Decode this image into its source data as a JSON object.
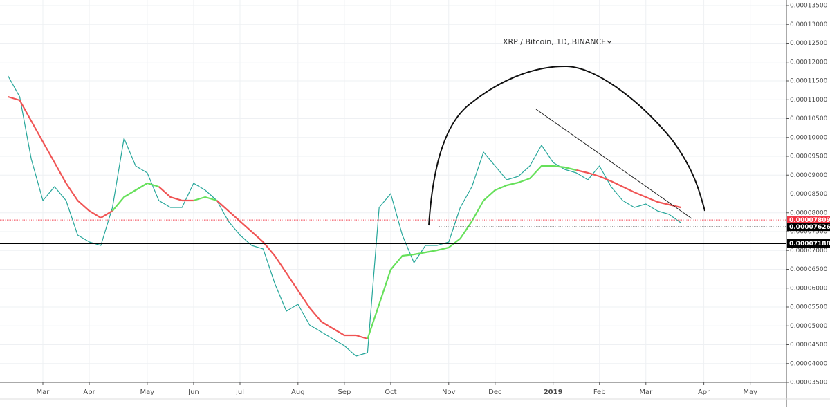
{
  "chart_data": {
    "type": "line",
    "title": "XRP / Bitcoin, 1D, BINANCE",
    "categories": [
      null,
      null,
      null,
      "Mar",
      null,
      null,
      null,
      "Apr",
      null,
      null,
      null,
      null,
      "May",
      null,
      null,
      null,
      "Jun",
      null,
      null,
      null,
      "Jul",
      null,
      null,
      null,
      null,
      "Aug",
      null,
      null,
      null,
      "Sep",
      null,
      null,
      null,
      "Oct",
      null,
      null,
      null,
      null,
      "Nov",
      null,
      null,
      null,
      "Dec",
      null,
      null,
      null,
      null,
      "2019",
      null,
      null,
      null,
      "Feb",
      null,
      null,
      null,
      "Mar",
      null,
      null,
      null,
      null,
      "Apr",
      null,
      null,
      null,
      "May",
      null,
      null
    ],
    "series": [
      {
        "color": "#26a69a",
        "values": [
          0.00011628,
          0.00011078,
          9.427e-05,
          8.326e-05,
          8.693e-05,
          8.326e-05,
          7.408e-05,
          7.225e-05,
          7.133e-05,
          8.142e-05,
          9.977e-05,
          9.243e-05,
          9.06e-05,
          8.326e-05,
          8.142e-05,
          8.142e-05,
          8.784e-05,
          8.601e-05,
          8.326e-05,
          7.775e-05,
          7.408e-05,
          7.133e-05,
          7.041e-05,
          6.124e-05,
          5.39e-05,
          5.573e-05,
          5.023e-05,
          4.839e-05,
          4.656e-05,
          4.472e-05,
          4.197e-05,
          4.289e-05,
          8.142e-05,
          8.509e-05,
          7.408e-05,
          6.674e-05,
          7.133e-05,
          7.133e-05,
          7.225e-05,
          8.142e-05,
          8.693e-05,
          9.61e-05,
          9.243e-05,
          8.876e-05,
          8.968e-05,
          9.243e-05,
          9.794e-05,
          9.335e-05,
          9.151e-05,
          9.06e-05,
          8.876e-05,
          9.243e-05,
          8.693e-05,
          8.326e-05,
          8.142e-05,
          8.234e-05,
          8.05e-05,
          7.959e-05,
          7.738e-05,
          null,
          null,
          null,
          null,
          null,
          null,
          null,
          null
        ]
      },
      {
        "color": "#f05454",
        "values": [
          0.00011078,
          0.00010986,
          0.00010436,
          9.885e-05,
          9.335e-05,
          8.784e-05,
          8.326e-05,
          8.05e-05,
          7.867e-05,
          8.05e-05,
          null,
          null,
          null,
          8.693e-05,
          8.417e-05,
          8.326e-05,
          8.326e-05,
          null,
          8.326e-05,
          8.05e-05,
          7.775e-05,
          7.5e-05,
          7.225e-05,
          6.858e-05,
          6.399e-05,
          5.94e-05,
          5.482e-05,
          5.114e-05,
          4.931e-05,
          4.748e-05,
          4.748e-05,
          4.656e-05,
          null,
          null,
          null,
          null,
          null,
          null,
          null,
          null,
          null,
          null,
          null,
          null,
          null,
          null,
          null,
          null,
          null,
          9.133e-05,
          9.06e-05,
          8.968e-05,
          8.839e-05,
          8.693e-05,
          8.546e-05,
          8.417e-05,
          8.289e-05,
          8.216e-05,
          8.142e-05,
          null,
          null,
          null,
          null,
          null,
          null,
          null,
          null
        ]
      },
      {
        "color": "#66e05a",
        "values": [
          null,
          null,
          null,
          null,
          null,
          null,
          null,
          null,
          null,
          8.05e-05,
          8.417e-05,
          8.601e-05,
          8.784e-05,
          8.693e-05,
          null,
          null,
          8.326e-05,
          8.417e-05,
          8.326e-05,
          null,
          null,
          null,
          null,
          null,
          null,
          null,
          null,
          null,
          null,
          null,
          null,
          4.656e-05,
          5.573e-05,
          6.491e-05,
          6.858e-05,
          6.894e-05,
          6.949e-05,
          7.005e-05,
          7.078e-05,
          7.316e-05,
          7.775e-05,
          8.326e-05,
          8.601e-05,
          8.729e-05,
          8.803e-05,
          8.913e-05,
          9.243e-05,
          9.243e-05,
          9.206e-05,
          9.133e-05,
          null,
          null,
          null,
          null,
          null,
          null,
          null,
          null,
          null,
          null,
          null,
          null,
          null,
          null,
          null,
          null,
          null
        ]
      }
    ],
    "ylim": [
      3.5e-05,
      0.000136
    ],
    "yticks": [
      {
        "value": 3.5e-05,
        "label": "0.00003500"
      },
      {
        "value": 4e-05,
        "label": "0.00004000"
      },
      {
        "value": 4.5e-05,
        "label": "0.00004500"
      },
      {
        "value": 5e-05,
        "label": "0.00005000"
      },
      {
        "value": 5.5e-05,
        "label": "0.00005500"
      },
      {
        "value": 6e-05,
        "label": "0.00006000"
      },
      {
        "value": 6.5e-05,
        "label": "0.00006500"
      },
      {
        "value": 7e-05,
        "label": "0.00007000"
      },
      {
        "value": 7.5e-05,
        "label": "0.00007500"
      },
      {
        "value": 8e-05,
        "label": "0.00008000"
      },
      {
        "value": 8.5e-05,
        "label": "0.00008500"
      },
      {
        "value": 9e-05,
        "label": "0.00009000"
      },
      {
        "value": 9.5e-05,
        "label": "0.00009500"
      },
      {
        "value": 0.0001,
        "label": "0.00010000"
      },
      {
        "value": 0.000105,
        "label": "0.00010500"
      },
      {
        "value": 0.00011,
        "label": "0.00011000"
      },
      {
        "value": 0.000115,
        "label": "0.00011500"
      },
      {
        "value": 0.00012,
        "label": "0.00012000"
      },
      {
        "value": 0.000125,
        "label": "0.00012500"
      },
      {
        "value": 0.00013,
        "label": "0.00013000"
      },
      {
        "value": 0.000135,
        "label": "0.00013500"
      }
    ],
    "grid": true,
    "levels": [
      {
        "value": 7.809e-05,
        "color": "#f23645",
        "style": "dotted"
      },
      {
        "value": 7.626e-05,
        "color": "#000000",
        "style": "dotted"
      },
      {
        "value": 7.188e-05,
        "color": "#000000",
        "style": "solid"
      }
    ]
  }
}
